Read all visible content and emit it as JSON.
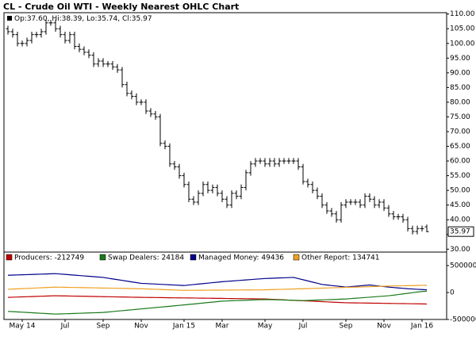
{
  "chart_data": [
    {
      "type": "ohlc",
      "title": "CL - Crude Oil WTI - Weekly Nearest OHLC Chart",
      "legend_text": "Op:37.60, Hi:38.39, Lo:35.74, Cl:35.97",
      "last_label": "35.97",
      "color": "#000000",
      "open": [
        105,
        104,
        103,
        100,
        100,
        101,
        103,
        103,
        104,
        107,
        107,
        105,
        103,
        101,
        103,
        99,
        98,
        97,
        96,
        93,
        94,
        93,
        93,
        92,
        91,
        86,
        83,
        82,
        80,
        80,
        77,
        76,
        75,
        66,
        65,
        59,
        58,
        55,
        52,
        47,
        46,
        49,
        52,
        50,
        51,
        49,
        47,
        45,
        49,
        48,
        51,
        56,
        59,
        60,
        60,
        59,
        60,
        59,
        60,
        60,
        60,
        60,
        58,
        53,
        52,
        50,
        48,
        45,
        43,
        42,
        40,
        45,
        46,
        46,
        46,
        45,
        48,
        47,
        45,
        46,
        44,
        42,
        41,
        41,
        40,
        37,
        36,
        37,
        37.6
      ],
      "high": [
        106,
        105,
        104,
        101,
        102,
        104,
        104,
        105,
        108,
        108,
        108,
        106,
        104,
        104,
        104,
        100,
        99,
        98,
        97,
        95,
        95,
        94,
        94,
        93,
        92,
        87,
        84,
        83,
        81,
        81,
        78,
        77,
        76,
        67,
        66,
        60,
        59,
        56,
        53,
        48,
        50,
        53,
        53,
        52,
        52,
        50,
        48,
        50,
        50,
        52,
        57,
        60,
        61,
        61,
        61,
        61,
        61,
        61,
        61,
        61,
        61,
        61,
        59,
        54,
        53,
        51,
        49,
        46,
        44,
        43,
        46,
        47,
        47,
        47,
        47,
        49,
        49,
        48,
        47,
        47,
        45,
        43,
        42,
        42,
        41,
        38,
        38,
        38,
        38.39
      ],
      "low": [
        103,
        102,
        99,
        99,
        99,
        100,
        102,
        102,
        103,
        106,
        104,
        102,
        100,
        100,
        98,
        97,
        96,
        95,
        92,
        92,
        92,
        92,
        91,
        90,
        85,
        82,
        81,
        79,
        79,
        76,
        75,
        74,
        65,
        64,
        58,
        57,
        54,
        51,
        46,
        45,
        45,
        48,
        49,
        49,
        48,
        46,
        44,
        44,
        47,
        47,
        50,
        55,
        58,
        59,
        58,
        58,
        58,
        58,
        59,
        59,
        59,
        57,
        52,
        51,
        49,
        47,
        44,
        42,
        41,
        39,
        39,
        44,
        45,
        45,
        44,
        44,
        46,
        44,
        44,
        43,
        41,
        40,
        40,
        39,
        36,
        35,
        35,
        36,
        35.74
      ],
      "close": [
        104,
        103,
        100,
        100,
        101,
        103,
        103,
        104,
        107,
        107,
        105,
        103,
        101,
        103,
        99,
        98,
        97,
        96,
        93,
        94,
        93,
        93,
        92,
        91,
        86,
        83,
        82,
        80,
        80,
        77,
        76,
        75,
        66,
        65,
        59,
        58,
        55,
        52,
        47,
        46,
        49,
        52,
        50,
        51,
        49,
        47,
        45,
        49,
        48,
        51,
        56,
        59,
        60,
        60,
        59,
        60,
        59,
        60,
        60,
        60,
        60,
        58,
        53,
        52,
        50,
        48,
        45,
        43,
        42,
        40,
        45,
        46,
        46,
        46,
        45,
        48,
        47,
        45,
        46,
        44,
        42,
        41,
        41,
        40,
        37,
        36,
        37,
        37,
        35.97
      ],
      "ylim": [
        29,
        111
      ],
      "yticks": [
        {
          "value": 110,
          "label": "110.00"
        },
        {
          "value": 105,
          "label": "105.00"
        },
        {
          "value": 100,
          "label": "100.00"
        },
        {
          "value": 95,
          "label": "95.00"
        },
        {
          "value": 90,
          "label": "90.00"
        },
        {
          "value": 85,
          "label": "85.00"
        },
        {
          "value": 80,
          "label": "80.00"
        },
        {
          "value": 75,
          "label": "75.00"
        },
        {
          "value": 70,
          "label": "70.00"
        },
        {
          "value": 65,
          "label": "65.00"
        },
        {
          "value": 60,
          "label": "60.00"
        },
        {
          "value": 55,
          "label": "55.00"
        },
        {
          "value": 50,
          "label": "50.00"
        },
        {
          "value": 45,
          "label": "45.00"
        },
        {
          "value": 40,
          "label": "40.00"
        },
        {
          "value": 35,
          "label": "35.00"
        },
        {
          "value": 30,
          "label": "30.00"
        }
      ],
      "grid": false
    },
    {
      "type": "line",
      "categories": [
        null,
        null,
        null,
        "May 14",
        null,
        null,
        null,
        null,
        null,
        null,
        null,
        null,
        "Jul",
        null,
        null,
        null,
        null,
        null,
        null,
        null,
        "Sep",
        null,
        null,
        null,
        null,
        null,
        null,
        null,
        "Nov",
        null,
        null,
        null,
        null,
        null,
        null,
        null,
        null,
        "Jan 15",
        null,
        null,
        null,
        null,
        null,
        null,
        null,
        "Mar",
        null,
        null,
        null,
        null,
        null,
        null,
        null,
        null,
        "May",
        null,
        null,
        null,
        null,
        null,
        null,
        null,
        "Jul",
        null,
        null,
        null,
        null,
        null,
        null,
        null,
        null,
        "Sep",
        null,
        null,
        null,
        null,
        null,
        null,
        null,
        "Nov",
        null,
        null,
        null,
        null,
        null,
        null,
        null,
        "Jan 16",
        null
      ],
      "series": [
        {
          "name": "Producers: -212749",
          "color": "#c00000",
          "values": [
            -90000,
            -87000,
            -84000,
            -81000,
            -78000,
            -75000,
            -72000,
            -69000,
            -66000,
            -63000,
            -60000,
            -62000,
            -63000,
            -65000,
            -67000,
            -68000,
            -70000,
            -72000,
            -73000,
            -75000,
            -77000,
            -78000,
            -80000,
            -82000,
            -83000,
            -85000,
            -87000,
            -88000,
            -90000,
            -91000,
            -92000,
            -93000,
            -94000,
            -96000,
            -97000,
            -98000,
            -99000,
            -100000,
            -101000,
            -102000,
            -104000,
            -105000,
            -106000,
            -107000,
            -108000,
            -109000,
            -111000,
            -112000,
            -113000,
            -114000,
            -115000,
            -116000,
            -118000,
            -119000,
            -120000,
            -124000,
            -128000,
            -132000,
            -136000,
            -141000,
            -145000,
            -149000,
            -153000,
            -157000,
            -161000,
            -165000,
            -169000,
            -174000,
            -178000,
            -182000,
            -186000,
            -190000,
            -191000,
            -193000,
            -194000,
            -195000,
            -197000,
            -198000,
            -199000,
            -201000,
            -202000,
            -203000,
            -205000,
            -206000,
            -207000,
            -209000,
            -210000,
            -211000,
            -212749
          ]
        },
        {
          "name": "Swap Dealers: 24184",
          "color": "#1a7a1a",
          "values": [
            -350000,
            -355000,
            -360000,
            -365000,
            -370000,
            -375000,
            -380000,
            -385000,
            -390000,
            -395000,
            -400000,
            -397000,
            -394000,
            -391000,
            -388000,
            -385000,
            -382000,
            -379000,
            -376000,
            -373000,
            -370000,
            -362000,
            -354000,
            -345000,
            -337000,
            -329000,
            -321000,
            -312000,
            -304000,
            -296000,
            -288000,
            -279000,
            -271000,
            -263000,
            -255000,
            -246000,
            -238000,
            -230000,
            -221000,
            -213000,
            -204000,
            -195000,
            -186000,
            -178000,
            -169000,
            -160000,
            -157000,
            -153000,
            -150000,
            -147000,
            -143000,
            -140000,
            -137000,
            -133000,
            -130000,
            -132000,
            -135000,
            -137000,
            -140000,
            -142000,
            -145000,
            -147000,
            -150000,
            -147000,
            -143000,
            -140000,
            -137000,
            -133000,
            -130000,
            -127000,
            -123000,
            -120000,
            -113000,
            -107000,
            -100000,
            -93000,
            -87000,
            -80000,
            -73000,
            -67000,
            -60000,
            -50000,
            -38000,
            -26000,
            -15000,
            -3000,
            9000,
            18000,
            24184
          ]
        },
        {
          "name": "Managed Money: 49436",
          "color": "#00008b",
          "values": [
            320000,
            323000,
            326000,
            329000,
            332000,
            335000,
            338000,
            341000,
            344000,
            347000,
            350000,
            343000,
            336000,
            329000,
            322000,
            315000,
            308000,
            301000,
            294000,
            287000,
            280000,
            266000,
            252000,
            239000,
            225000,
            211000,
            197000,
            184000,
            170000,
            166000,
            161000,
            157000,
            152000,
            148000,
            143000,
            139000,
            134000,
            130000,
            139000,
            148000,
            156000,
            165000,
            174000,
            183000,
            191000,
            200000,
            207000,
            213000,
            220000,
            227000,
            233000,
            240000,
            247000,
            253000,
            260000,
            263000,
            267000,
            270000,
            273000,
            277000,
            280000,
            258000,
            237000,
            215000,
            193000,
            172000,
            150000,
            140000,
            130000,
            120000,
            110000,
            100000,
            108000,
            116000,
            124000,
            132000,
            140000,
            130000,
            120000,
            110000,
            100000,
            93000,
            85000,
            78000,
            70000,
            65000,
            60000,
            55000,
            49436
          ]
        },
        {
          "name": "Other Report: 134741",
          "color": "#f0a020",
          "values": [
            60000,
            64000,
            68000,
            72000,
            76000,
            80000,
            84000,
            88000,
            92000,
            96000,
            100000,
            98000,
            97000,
            95000,
            93000,
            92000,
            90000,
            88000,
            87000,
            85000,
            83000,
            82000,
            80000,
            78000,
            77000,
            75000,
            73000,
            72000,
            70000,
            67000,
            63000,
            60000,
            57000,
            53000,
            50000,
            47000,
            43000,
            40000,
            41000,
            41000,
            42000,
            42000,
            43000,
            44000,
            44000,
            45000,
            45000,
            46000,
            47000,
            47000,
            48000,
            48000,
            49000,
            49000,
            50000,
            53000,
            55000,
            58000,
            60000,
            63000,
            65000,
            68000,
            70000,
            73000,
            76000,
            78000,
            81000,
            84000,
            87000,
            89000,
            92000,
            95000,
            98000,
            101000,
            103000,
            106000,
            109000,
            112000,
            114000,
            117000,
            120000,
            122000,
            124000,
            126000,
            127000,
            129000,
            131000,
            133000,
            134741
          ]
        }
      ],
      "ylim": [
        -500000,
        750000
      ],
      "yticks": [
        500000,
        0,
        -500000
      ],
      "grid": false
    }
  ]
}
